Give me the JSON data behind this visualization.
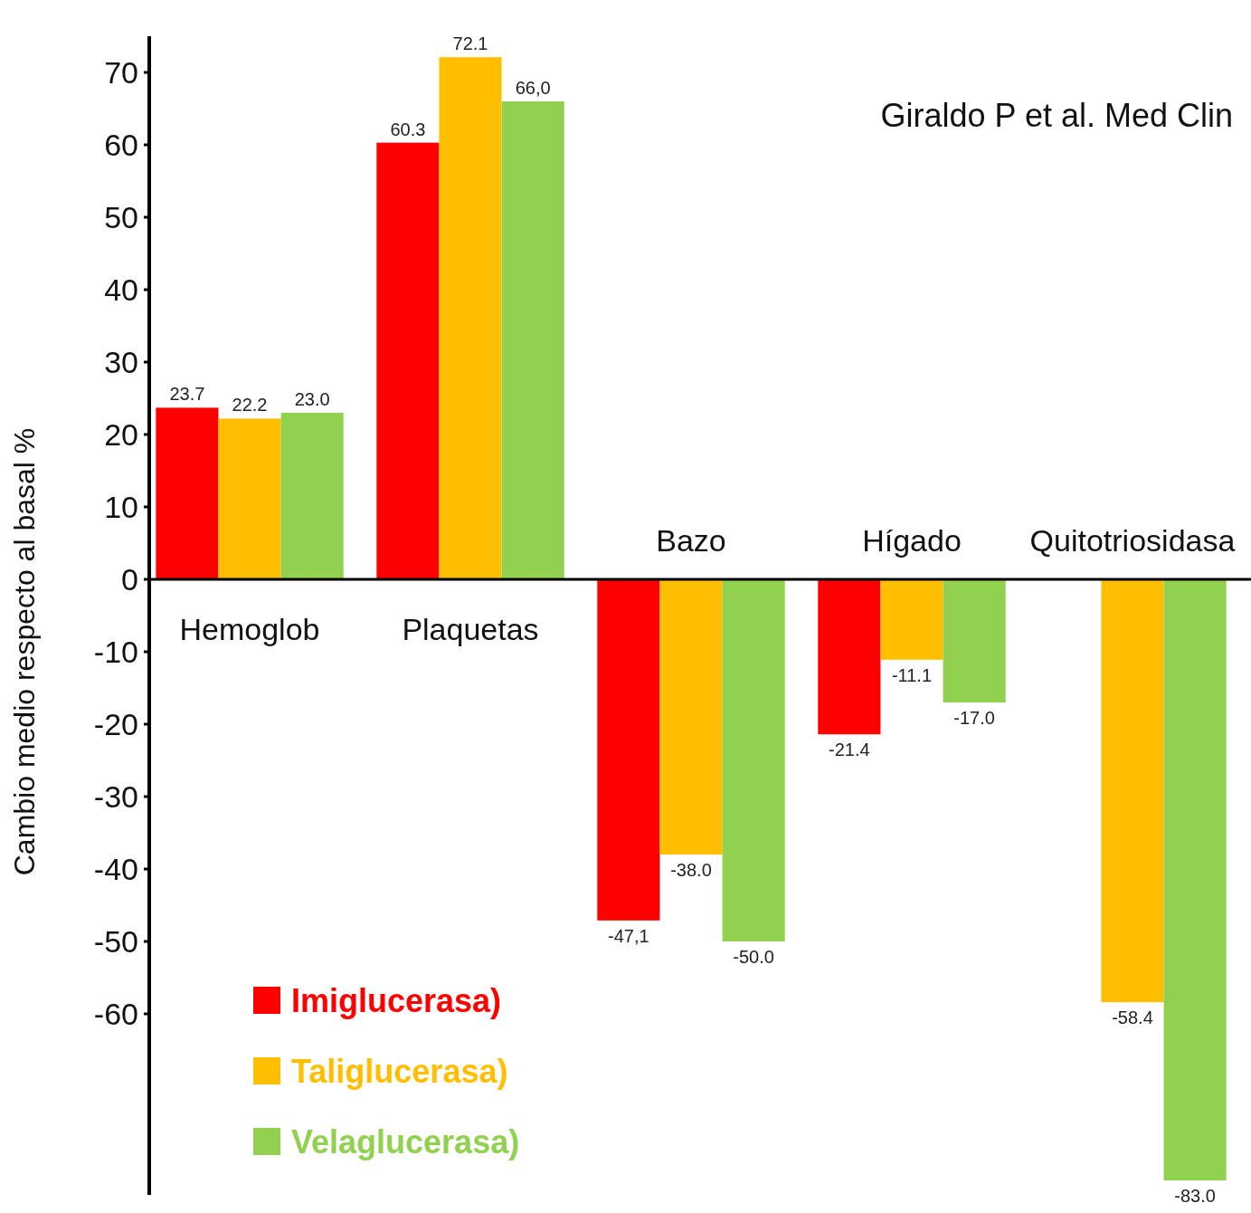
{
  "chart_data": {
    "type": "bar",
    "ylabel": "Cambio medio respecto al basal %",
    "categories": [
      "Hemoglob",
      "Plaquetas",
      "Bazo",
      "Hígado",
      "Quitotriosidasa"
    ],
    "series": [
      {
        "name": "Imiglucerasa)",
        "color": "#ff0000",
        "values": [
          23.7,
          60.3,
          -47.1,
          -21.4,
          null
        ],
        "value_labels": [
          "23.7",
          "60.3",
          "-47,1",
          "-21.4",
          null
        ]
      },
      {
        "name": "Taliglucerasa)",
        "color": "#ffbf00",
        "values": [
          22.2,
          72.1,
          -38.0,
          -11.1,
          -58.4
        ],
        "value_labels": [
          "22.2",
          "72.1",
          "-38.0",
          "-11.1",
          "-58.4"
        ]
      },
      {
        "name": "Velaglucerasa)",
        "color": "#92d050",
        "values": [
          23.0,
          66.0,
          -50.0,
          -17.0,
          -83.0
        ],
        "value_labels": [
          "23.0",
          "66,0",
          "-50.0",
          "-17.0",
          "-83.0"
        ]
      }
    ],
    "ylim": [
      -85,
      75
    ],
    "yticks": [
      -60,
      -50,
      -40,
      -30,
      -20,
      -10,
      0,
      10,
      20,
      30,
      40,
      50,
      60,
      70
    ],
    "grid": false,
    "legend": "bottom left",
    "annotations": [
      "Giraldo P et al. Med Clin"
    ]
  }
}
